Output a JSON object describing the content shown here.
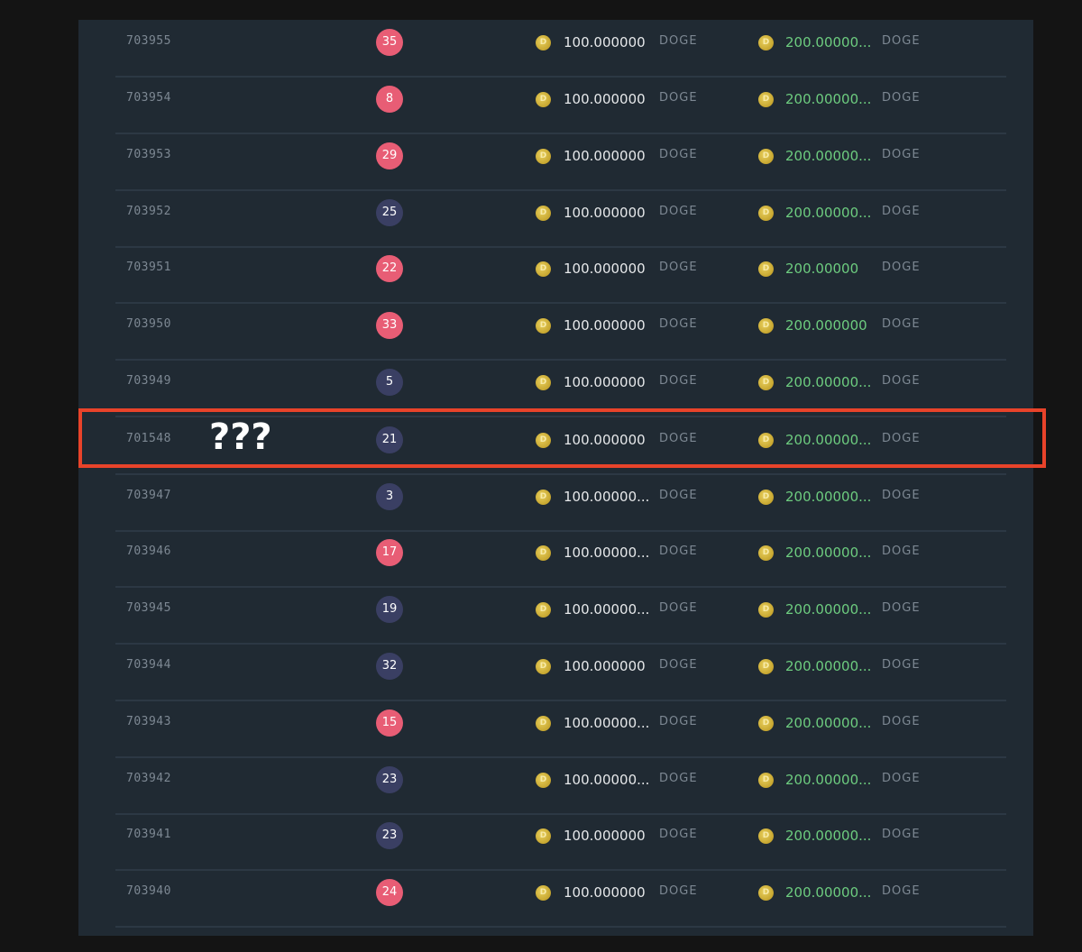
{
  "colors": {
    "badge_red": "#e85d75",
    "badge_navy": "#3a3f63",
    "profit_green": "#6dcc7f",
    "highlight": "#e8432a"
  },
  "annotation": "???",
  "rows": [
    {
      "id": "703955",
      "roll": "35",
      "color": "red",
      "bet": "100.000000",
      "payout": "200.00000...",
      "currency": "DOGE"
    },
    {
      "id": "703954",
      "roll": "8",
      "color": "red",
      "bet": "100.000000",
      "payout": "200.00000...",
      "currency": "DOGE"
    },
    {
      "id": "703953",
      "roll": "29",
      "color": "red",
      "bet": "100.000000",
      "payout": "200.00000...",
      "currency": "DOGE"
    },
    {
      "id": "703952",
      "roll": "25",
      "color": "navy",
      "bet": "100.000000",
      "payout": "200.00000...",
      "currency": "DOGE"
    },
    {
      "id": "703951",
      "roll": "22",
      "color": "red",
      "bet": "100.000000",
      "payout": "200.00000",
      "currency": "DOGE"
    },
    {
      "id": "703950",
      "roll": "33",
      "color": "red",
      "bet": "100.000000",
      "payout": "200.000000",
      "currency": "DOGE"
    },
    {
      "id": "703949",
      "roll": "5",
      "color": "navy",
      "bet": "100.000000",
      "payout": "200.00000...",
      "currency": "DOGE"
    },
    {
      "id": "701548",
      "roll": "21",
      "color": "navy",
      "bet": "100.000000",
      "payout": "200.00000...",
      "currency": "DOGE"
    },
    {
      "id": "703947",
      "roll": "3",
      "color": "navy",
      "bet": "100.00000...",
      "payout": "200.00000...",
      "currency": "DOGE"
    },
    {
      "id": "703946",
      "roll": "17",
      "color": "red",
      "bet": "100.00000...",
      "payout": "200.00000...",
      "currency": "DOGE"
    },
    {
      "id": "703945",
      "roll": "19",
      "color": "navy",
      "bet": "100.00000...",
      "payout": "200.00000...",
      "currency": "DOGE"
    },
    {
      "id": "703944",
      "roll": "32",
      "color": "navy",
      "bet": "100.000000",
      "payout": "200.00000...",
      "currency": "DOGE"
    },
    {
      "id": "703943",
      "roll": "15",
      "color": "red",
      "bet": "100.00000...",
      "payout": "200.00000...",
      "currency": "DOGE"
    },
    {
      "id": "703942",
      "roll": "23",
      "color": "navy",
      "bet": "100.00000...",
      "payout": "200.00000...",
      "currency": "DOGE"
    },
    {
      "id": "703941",
      "roll": "23",
      "color": "navy",
      "bet": "100.000000",
      "payout": "200.00000...",
      "currency": "DOGE"
    },
    {
      "id": "703940",
      "roll": "24",
      "color": "red",
      "bet": "100.000000",
      "payout": "200.00000...",
      "currency": "DOGE"
    }
  ]
}
